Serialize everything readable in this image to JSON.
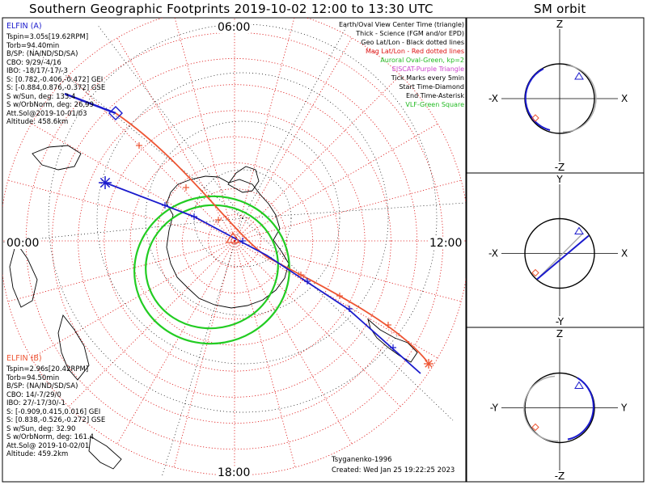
{
  "title": "Southern Geographic Footprints 2019-10-02 12:00 to 13:30 UTC",
  "orbit_title": "SM orbit",
  "clock_labels": {
    "top": "06:00",
    "left": "00:00",
    "right": "12:00",
    "bottom": "18:00"
  },
  "elfin_a": {
    "name": "ELFIN (A)",
    "color": "#1a1acc",
    "lines": [
      "Tspin=3.05s[19.62RPM]",
      "Torb=94.40min",
      "B/SP: (NA/ND/SD/SA)",
      "CBO: 9/29/-4/16",
      "IBO: -18/17/-17/-3",
      "S: [0.782,-0.406,-0.472] GEI",
      "S: [-0.884,0.876,-0.372] GSE",
      "S w/Sun, deg: 133.4",
      "S w/OrbNorm, deg: 26.99",
      "Att.Sol@2019-10-01/03",
      "Altitude: 458.6km"
    ]
  },
  "elfin_b": {
    "name": "ELFIN (B)",
    "color": "#ee5533",
    "lines": [
      "Tspin=2.96s[20.42RPM]",
      "Torb=94.50min",
      "B/SP: (NA/ND/SD/SA)",
      "CBO: 14/-7/29/0",
      "IBO: 27/-17/30/-1",
      "S: [-0.909,0.415,0.016] GEI",
      "S: [0.838,-0.526,-0.272] GSE",
      "S w/Sun, deg: 32.90",
      "S w/OrbNorm, deg: 161.4",
      "Att.Sol@ 2019-10-02/01",
      "Altitude: 459.2km"
    ]
  },
  "legend": [
    {
      "text": "Earth/Oval View Center Time (triangle)",
      "color": "#000000"
    },
    {
      "text": "Thick - Science (FGM and/or EPD)",
      "color": "#000000"
    },
    {
      "text": "Geo Lat/Lon - Black dotted lines",
      "color": "#000000"
    },
    {
      "text": "Mag Lat/Lon - Red dotted lines",
      "color": "#dd1111"
    },
    {
      "text": "Auroral Oval-Green, kp=2",
      "color": "#22bb22"
    },
    {
      "text": "EISCAT-Purple Triangle",
      "color": "#cc44cc"
    },
    {
      "text": "Tick Marks every 5min",
      "color": "#000000"
    },
    {
      "text": "Start Time-Diamond",
      "color": "#000000"
    },
    {
      "text": "End Time-Asterisk",
      "color": "#000000"
    },
    {
      "text": "VLF-Green Square",
      "color": "#22bb22"
    }
  ],
  "footer": {
    "model": "Tsyganenko-1996",
    "created": "Created: Wed Jan 25 19:22:25 2023"
  },
  "orbit_panels": [
    {
      "top": "Z",
      "bottom": "-Z",
      "left": "-X",
      "right": "X"
    },
    {
      "top": "Y",
      "bottom": "-Y",
      "left": "-X",
      "right": "X"
    },
    {
      "top": "Z",
      "bottom": "-Z",
      "left": "-Y",
      "right": "Y"
    }
  ],
  "colors": {
    "elfin_a": "#1a1acc",
    "elfin_b": "#ee5533",
    "mag_grid": "#dd1111",
    "auroral_oval": "#22cc22",
    "coast": "#000000"
  },
  "chart_data": {
    "type": "polar-map",
    "projection": "south polar stereographic (magnetic local time)",
    "mag_lat_circles_deg": [
      -80,
      -70,
      -60,
      -50,
      -40,
      -30,
      -20,
      -10,
      0
    ],
    "mlt_spokes_hours": [
      0,
      1,
      2,
      3,
      4,
      5,
      6,
      7,
      8,
      9,
      10,
      11,
      12,
      13,
      14,
      15,
      16,
      17,
      18,
      19,
      20,
      21,
      22,
      23
    ],
    "series": [
      {
        "name": "ELFIN (A)",
        "start_marker": "diamond",
        "end_marker": "asterisk"
      },
      {
        "name": "ELFIN (B)",
        "start_marker": "diamond",
        "end_marker": "asterisk"
      }
    ]
  }
}
